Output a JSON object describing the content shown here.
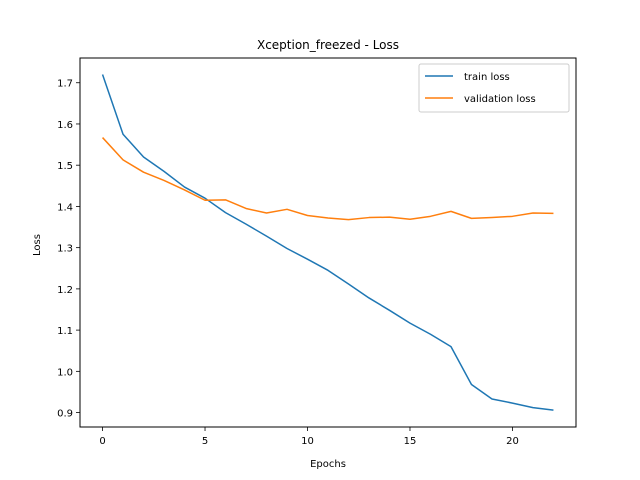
{
  "chart_data": {
    "type": "line",
    "title": "Xception_freezed - Loss",
    "xlabel": "Epochs",
    "ylabel": "Loss",
    "xlim": [
      -1.1,
      23.1
    ],
    "ylim": [
      0.865,
      1.76
    ],
    "xticks": [
      0,
      5,
      10,
      15,
      20
    ],
    "yticks": [
      0.9,
      1.0,
      1.1,
      1.2,
      1.3,
      1.4,
      1.5,
      1.6,
      1.7
    ],
    "legend_position": "top-right",
    "grid": false,
    "x": [
      0,
      1,
      2,
      3,
      4,
      5,
      6,
      7,
      8,
      9,
      10,
      11,
      12,
      13,
      14,
      15,
      16,
      17,
      18,
      19,
      20,
      21,
      22
    ],
    "series": [
      {
        "name": "train loss",
        "color": "#1f77b4",
        "values": [
          1.72,
          1.575,
          1.52,
          1.485,
          1.447,
          1.42,
          1.385,
          1.357,
          1.328,
          1.298,
          1.272,
          1.245,
          1.212,
          1.178,
          1.148,
          1.117,
          1.09,
          1.06,
          0.968,
          0.933,
          0.923,
          0.912,
          0.906
        ]
      },
      {
        "name": "validation loss",
        "color": "#ff7f0e",
        "values": [
          1.567,
          1.513,
          1.483,
          1.463,
          1.44,
          1.415,
          1.416,
          1.395,
          1.384,
          1.393,
          1.378,
          1.372,
          1.368,
          1.373,
          1.374,
          1.369,
          1.376,
          1.388,
          1.371,
          1.373,
          1.376,
          1.384,
          1.383
        ]
      }
    ]
  }
}
